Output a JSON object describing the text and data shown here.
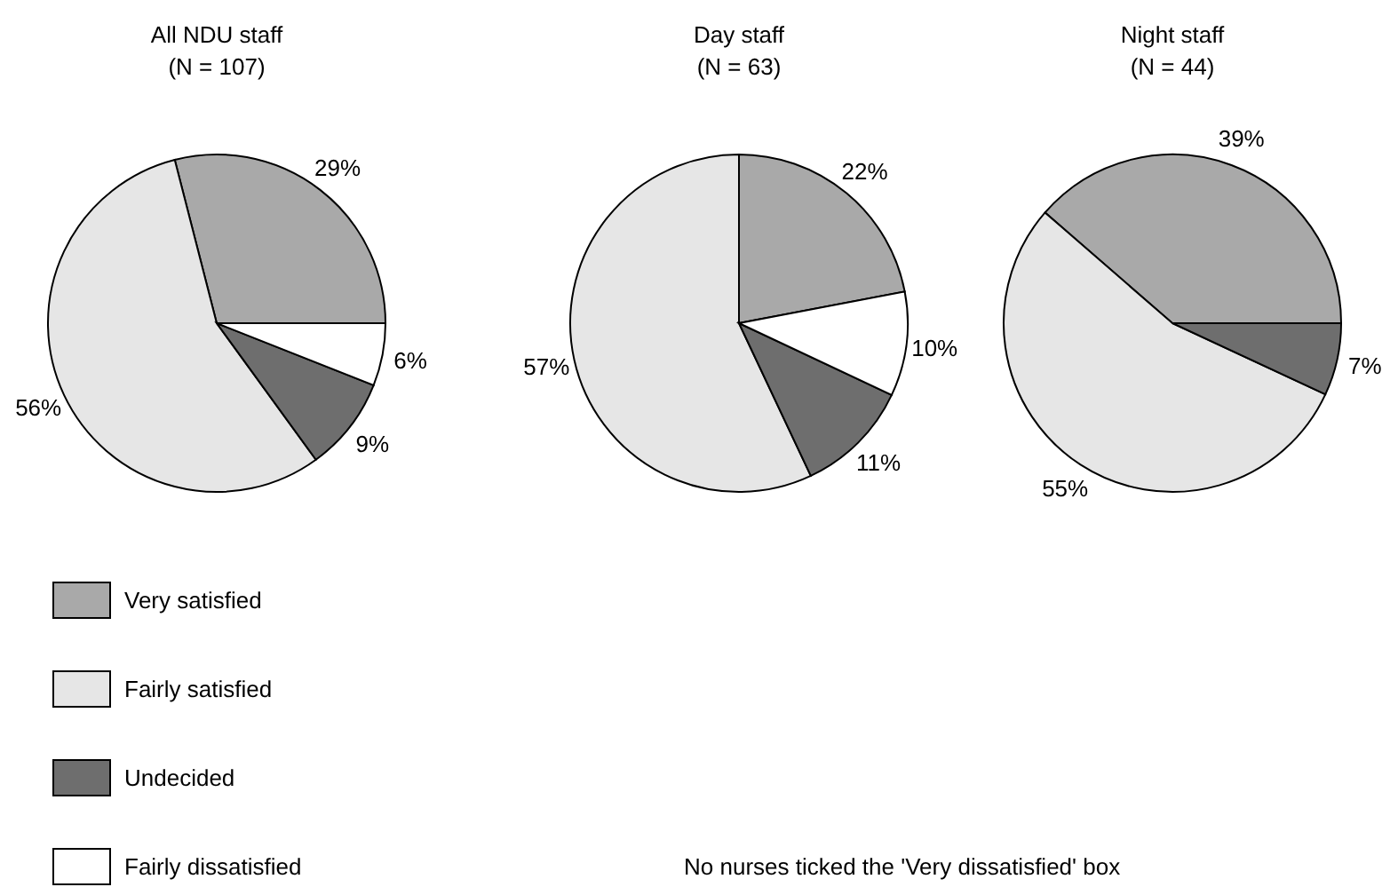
{
  "chart_data": [
    {
      "type": "pie",
      "title": "All NDU staff",
      "subtitle": "(N = 107)",
      "categories": [
        "Very satisfied",
        "Fairly satisfied",
        "Undecided",
        "Fairly dissatisfied"
      ],
      "values": [
        29,
        56,
        9,
        6
      ],
      "value_labels": [
        "29%",
        "56%",
        "9%",
        "6%"
      ],
      "colors": [
        "#a9a9a9",
        "#e6e6e6",
        "#6e6e6e",
        "#ffffff"
      ],
      "legend": "bottom left",
      "annotations": [
        "No nurses ticked the 'Very dissatisfied' box"
      ]
    },
    {
      "type": "pie",
      "title": "Day staff",
      "subtitle": "(N = 63)",
      "categories": [
        null,
        null,
        null,
        null
      ],
      "values": [
        22,
        57,
        11,
        10
      ],
      "value_labels": [
        "22%",
        "57%",
        "11%",
        "10%"
      ],
      "colors": [
        "#a9a9a9",
        "#e6e6e6",
        "#6e6e6e",
        "#ffffff"
      ]
    },
    {
      "type": "pie",
      "title": "Night staff",
      "subtitle": "(N = 44)",
      "categories": [
        null,
        null,
        null
      ],
      "values": [
        39,
        55,
        7
      ],
      "value_labels": [
        "39%",
        "55%",
        "7%"
      ],
      "colors": [
        "#a9a9a9",
        "#e6e6e6",
        "#6e6e6e"
      ]
    }
  ]
}
